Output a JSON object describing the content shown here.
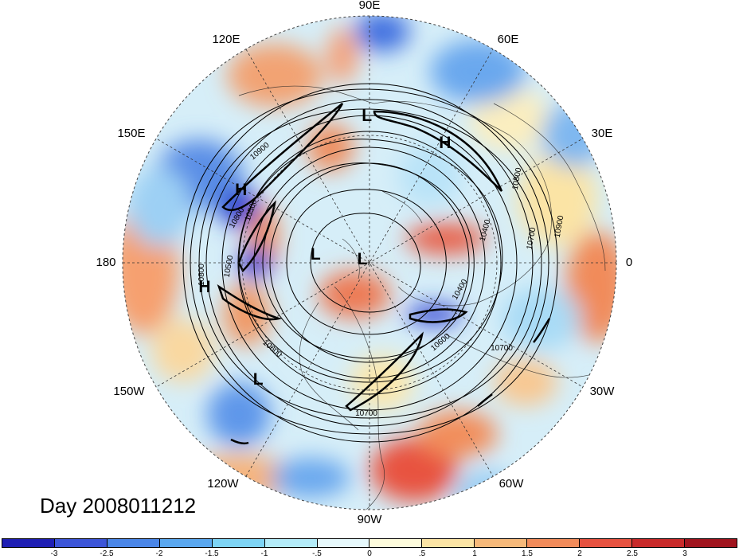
{
  "title": "Day 2008011212",
  "map": {
    "projection": "north-polar-stereographic",
    "longitude_labels": [
      "90E",
      "60E",
      "30E",
      "0",
      "30W",
      "60W",
      "90W",
      "120W",
      "150W",
      "180",
      "150E",
      "120E"
    ],
    "pressure_centers": [
      {
        "label": "L",
        "lon": 91,
        "lat": 28
      },
      {
        "label": "H",
        "lon": 58,
        "lat": 30
      },
      {
        "label": "H",
        "lon": 150,
        "lat": 28
      },
      {
        "label": "L",
        "lon": 170,
        "lat": 65
      },
      {
        "label": "L",
        "lon": 145,
        "lat": 86
      },
      {
        "label": "H",
        "lon": -172,
        "lat": 22
      },
      {
        "label": "L",
        "lon": -134,
        "lat": 24
      }
    ],
    "contour_labels": [
      "10900",
      "10800",
      "10500",
      "10500",
      "10800",
      "10400",
      "10700",
      "10900",
      "10400",
      "10600",
      "10600",
      "10700",
      "10700",
      "10800"
    ],
    "colors": {
      "land_outline": "#1a1a1a",
      "contour": "#000000"
    }
  },
  "colorbar": {
    "colors": [
      "#1f1fb4",
      "#3c55d8",
      "#4a86e8",
      "#5aa8f0",
      "#7ed4f5",
      "#b4ecf9",
      "#e6f8fb",
      "#fdfbdc",
      "#fbe4a5",
      "#f6b97a",
      "#f18b5a",
      "#e65240",
      "#c82a2a",
      "#a0141e"
    ],
    "ticks": [
      "-3",
      "-2.5",
      "-2",
      "-1.5",
      "-1",
      "-.5",
      "0",
      ".5",
      "1",
      "1.5",
      "2",
      "2.5",
      "3"
    ]
  }
}
